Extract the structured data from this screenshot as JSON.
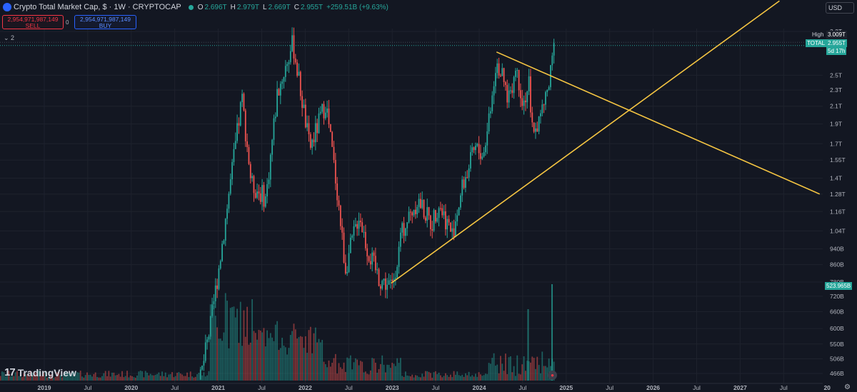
{
  "header": {
    "title": "Crypto Total Market Cap, $ · 1W · CRYPTOCAP",
    "ohlc": [
      {
        "label": "O",
        "value": "2.696T"
      },
      {
        "label": "H",
        "value": "2.979T"
      },
      {
        "label": "L",
        "value": "2.669T"
      },
      {
        "label": "C",
        "value": "2.955T"
      }
    ],
    "change": "+259.51B (+9.63%)"
  },
  "trade": {
    "sell_price": "2,954,971,987,149",
    "sell_label": "SELL",
    "spread": "0",
    "buy_price": "2,954,971,987,149",
    "buy_label": "BUY"
  },
  "indicator_toggle": "⌄ 2",
  "currency": "USD",
  "brand": "TradingView",
  "colors": {
    "background": "#131722",
    "up": "#26a69a",
    "down": "#ef5350",
    "trendline": "#f5c542",
    "grid": "#1e222d",
    "text": "#b2b5be"
  },
  "chart_data": {
    "type": "candlestick",
    "title": "Crypto Total Market Cap, $ · 1W · CRYPTOCAP",
    "scale": "log",
    "y_ticks": [
      "3.2T",
      "2.5T",
      "2.3T",
      "2.1T",
      "1.9T",
      "1.7T",
      "1.55T",
      "1.4T",
      "1.28T",
      "1.16T",
      "1.04T",
      "940B",
      "860B",
      "780B",
      "720B",
      "660B",
      "600B",
      "550B",
      "506B",
      "466B"
    ],
    "x_ticks": [
      "2019",
      "Jul",
      "2020",
      "Jul",
      "2021",
      "Jul",
      "2022",
      "Jul",
      "2023",
      "Jul",
      "2024",
      "Jul",
      "2025",
      "Jul",
      "2026",
      "Jul",
      "2027",
      "Jul",
      "20"
    ],
    "price_path": [
      [
        "2020-10-01",
        0.4
      ],
      [
        "2020-12-01",
        0.62
      ],
      [
        "2021-01-15",
        0.95
      ],
      [
        "2021-04-10",
        2.2
      ],
      [
        "2021-05-20",
        1.35
      ],
      [
        "2021-07-20",
        1.25
      ],
      [
        "2021-09-05",
        2.25
      ],
      [
        "2021-11-10",
        3.0
      ],
      [
        "2022-01-20",
        1.65
      ],
      [
        "2022-03-28",
        2.15
      ],
      [
        "2022-05-15",
        1.3
      ],
      [
        "2022-06-18",
        0.84
      ],
      [
        "2022-08-15",
        1.15
      ],
      [
        "2022-09-20",
        0.93
      ],
      [
        "2022-11-10",
        0.79
      ],
      [
        "2022-12-30",
        0.76
      ],
      [
        "2023-02-15",
        1.05
      ],
      [
        "2023-04-18",
        1.24
      ],
      [
        "2023-06-15",
        1.08
      ],
      [
        "2023-07-15",
        1.22
      ],
      [
        "2023-09-10",
        1.02
      ],
      [
        "2023-10-25",
        1.35
      ],
      [
        "2023-12-15",
        1.65
      ],
      [
        "2024-01-20",
        1.6
      ],
      [
        "2024-03-14",
        2.75
      ],
      [
        "2024-05-01",
        2.2
      ],
      [
        "2024-06-05",
        2.6
      ],
      [
        "2024-07-05",
        2.15
      ],
      [
        "2024-07-30",
        2.4
      ],
      [
        "2024-08-05",
        1.85
      ],
      [
        "2024-09-06",
        1.9
      ],
      [
        "2024-10-20",
        2.35
      ],
      [
        "2024-11-12",
        2.955
      ]
    ],
    "last_candle": {
      "open": "2.696T",
      "high": "2.979T",
      "low": "2.669T",
      "close": "2.955T"
    },
    "price_labels": [
      {
        "name": "High",
        "value": "3.009T"
      },
      {
        "name": "TOTAL",
        "value": "2.955T"
      },
      {
        "name": "countdown",
        "value": "5d 17h"
      },
      {
        "name": "volume",
        "value": "523.965B"
      }
    ],
    "trendlines": [
      {
        "from": [
          "2022-12-28",
          "775B"
        ],
        "to": [
          "2027-06-15",
          "3.8T"
        ]
      },
      {
        "from": [
          "2024-03-14",
          "2.85T"
        ],
        "to": [
          "2027-12-01",
          "1.28T"
        ]
      }
    ],
    "series": [
      {
        "name": "Volume"
      }
    ],
    "grid": true
  }
}
